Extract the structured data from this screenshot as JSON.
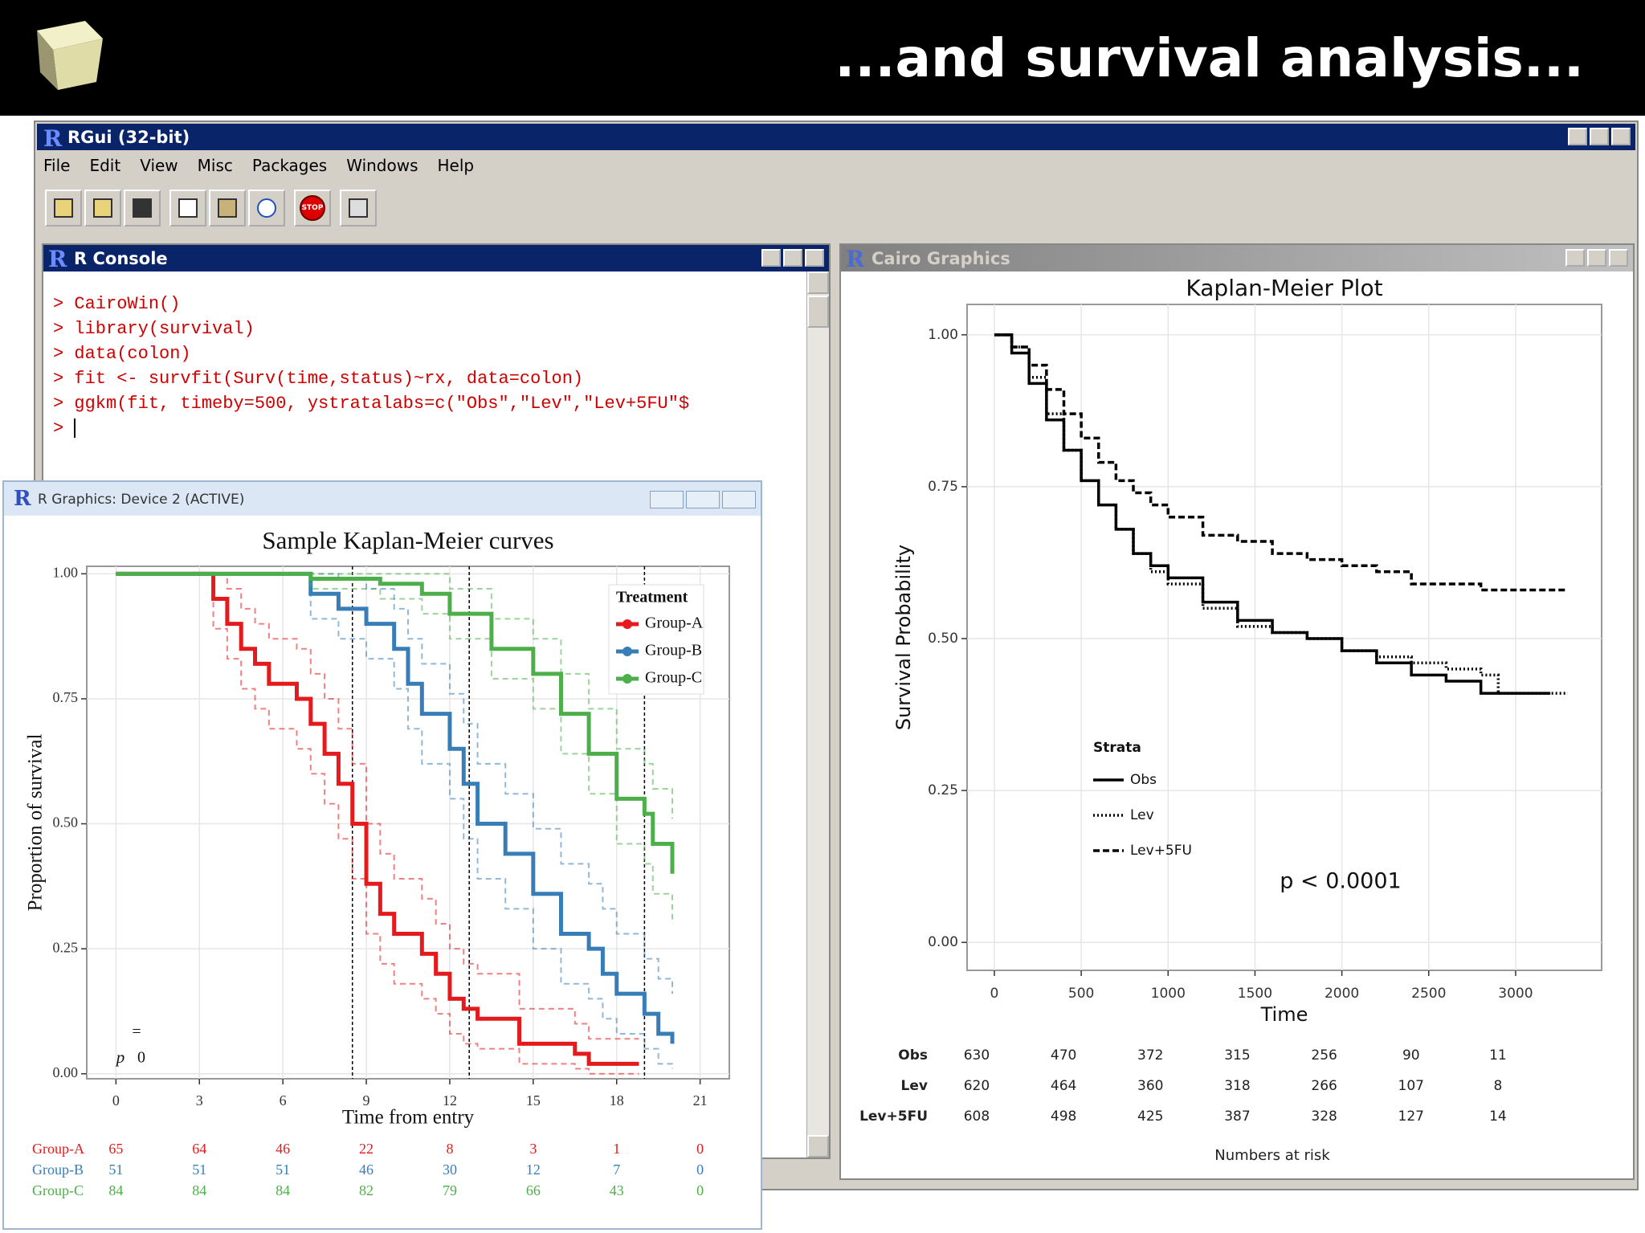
{
  "slide_title": "...and survival analysis...",
  "rgui": {
    "title": "RGui (32-bit)",
    "menu": [
      "File",
      "Edit",
      "View",
      "Misc",
      "Packages",
      "Windows",
      "Help"
    ],
    "stop_label": "STOP"
  },
  "console": {
    "title": "R Console",
    "lines": [
      "> CairoWin()",
      "> library(survival)",
      "> data(colon)",
      "> fit <- survfit(Surv(time,status)~rx, data=colon)",
      "> ggkm(fit, timeby=500, ystratalabs=c(\"Obs\",\"Lev\",\"Lev+5FU\"$",
      "> "
    ]
  },
  "device": {
    "title": "R Graphics: Device 2 (ACTIVE)",
    "chart_data": {
      "type": "step",
      "title": "Sample Kaplan-Meier curves",
      "x_label": "Time from entry",
      "y_label": "Proportion of survival",
      "xlim": [
        -1.05,
        22.05
      ],
      "ylim": [
        -0.01,
        1.015
      ],
      "xticks": [
        0,
        3,
        6,
        9,
        12,
        15,
        18,
        21
      ],
      "yticks": [
        {
          "value": 0,
          "label": "0.00"
        },
        0.25,
        {
          "value": 0.5,
          "label": "0.50"
        },
        0.75,
        {
          "value": 1,
          "label": "1.00"
        }
      ],
      "grid": true,
      "legend": "top-right",
      "legend_title": "Treatment",
      "reference_lines_x": [
        8.5,
        12.7,
        19.0
      ],
      "annotations": [
        "=",
        "p",
        "0"
      ],
      "series": [
        {
          "name": "Group-A",
          "color": "#e41a1c",
          "x": [
            0,
            2.5,
            3.5,
            4,
            4.5,
            5,
            5.5,
            6.5,
            7,
            7.5,
            8,
            8.5,
            9,
            9.5,
            10,
            11,
            11.5,
            12,
            12.5,
            13,
            14.5,
            16.5,
            17,
            18.8
          ],
          "values": [
            1,
            1,
            0.95,
            0.9,
            0.85,
            0.82,
            0.78,
            0.75,
            0.7,
            0.64,
            0.58,
            0.5,
            0.38,
            0.32,
            0.28,
            0.24,
            0.2,
            0.15,
            0.13,
            0.11,
            0.06,
            0.04,
            0.02,
            0.02
          ],
          "lower": [
            1,
            1,
            0.89,
            0.83,
            0.77,
            0.73,
            0.69,
            0.65,
            0.6,
            0.54,
            0.47,
            0.39,
            0.28,
            0.22,
            0.18,
            0.15,
            0.12,
            0.08,
            0.06,
            0.05,
            0.02,
            0.01,
            0,
            0
          ],
          "upper": [
            1,
            1,
            1,
            0.97,
            0.93,
            0.9,
            0.87,
            0.85,
            0.8,
            0.75,
            0.69,
            0.62,
            0.5,
            0.44,
            0.39,
            0.35,
            0.3,
            0.25,
            0.22,
            0.2,
            0.13,
            0.1,
            0.07,
            0.07
          ]
        },
        {
          "name": "Group-B",
          "color": "#377eb8",
          "x": [
            0,
            6.5,
            7,
            8,
            9,
            10,
            10.5,
            11,
            12,
            12.5,
            13,
            14,
            15,
            16,
            17,
            17.5,
            18,
            19,
            19.5,
            20
          ],
          "values": [
            1,
            1,
            0.96,
            0.93,
            0.9,
            0.85,
            0.78,
            0.72,
            0.65,
            0.58,
            0.5,
            0.44,
            0.36,
            0.28,
            0.25,
            0.2,
            0.16,
            0.12,
            0.08,
            0.06
          ],
          "lower": [
            1,
            1,
            0.91,
            0.87,
            0.83,
            0.77,
            0.69,
            0.62,
            0.55,
            0.47,
            0.39,
            0.33,
            0.25,
            0.18,
            0.15,
            0.11,
            0.08,
            0.05,
            0.02,
            0.01
          ],
          "upper": [
            1,
            1,
            1,
            0.99,
            0.97,
            0.93,
            0.87,
            0.82,
            0.76,
            0.7,
            0.62,
            0.56,
            0.49,
            0.42,
            0.38,
            0.33,
            0.28,
            0.23,
            0.19,
            0.16
          ]
        },
        {
          "name": "Group-C",
          "color": "#4daf4a",
          "x": [
            0,
            7,
            9.5,
            11,
            12,
            13.5,
            15,
            16,
            17,
            18,
            19,
            19.3,
            20
          ],
          "values": [
            1,
            0.99,
            0.98,
            0.96,
            0.92,
            0.85,
            0.8,
            0.72,
            0.64,
            0.55,
            0.52,
            0.46,
            0.4
          ],
          "lower": [
            1,
            0.97,
            0.95,
            0.92,
            0.87,
            0.79,
            0.73,
            0.64,
            0.56,
            0.46,
            0.42,
            0.36,
            0.3
          ],
          "upper": [
            1,
            1,
            1,
            1,
            0.97,
            0.91,
            0.87,
            0.8,
            0.73,
            0.65,
            0.62,
            0.57,
            0.51
          ]
        }
      ],
      "risk_table": {
        "counts": [
          [
            65,
            64,
            46,
            22,
            8,
            3,
            1,
            0
          ],
          [
            51,
            51,
            51,
            46,
            30,
            12,
            7,
            0
          ],
          [
            84,
            84,
            84,
            82,
            79,
            66,
            43,
            0
          ]
        ]
      }
    }
  },
  "cairo": {
    "title": "Cairo Graphics",
    "chart_data": {
      "type": "step",
      "title": "Kaplan-Meier Plot",
      "x_label": "Time",
      "y_label": "Survival Probability",
      "xlim": [
        -157,
        3495
      ],
      "ylim": [
        -0.046,
        1.05
      ],
      "xticks": [
        0,
        500,
        1000,
        1500,
        2000,
        2500,
        3000
      ],
      "yticks": [
        {
          "value": 0,
          "label": "0.00"
        },
        0.25,
        {
          "value": 0.5,
          "label": "0.50"
        },
        0.75,
        {
          "value": 1,
          "label": "1.00"
        }
      ],
      "grid": true,
      "legend": "left",
      "legend_title": "Strata",
      "annotations": [
        "p < 0.0001"
      ],
      "series": [
        {
          "name": "Obs",
          "color": "#000000",
          "linestyle": "solid",
          "x": [
            0,
            100,
            200,
            300,
            400,
            500,
            600,
            700,
            800,
            900,
            1000,
            1200,
            1400,
            1600,
            1800,
            2000,
            2200,
            2400,
            2600,
            2800,
            3000,
            3200
          ],
          "values": [
            1,
            0.97,
            0.92,
            0.86,
            0.81,
            0.76,
            0.72,
            0.68,
            0.64,
            0.62,
            0.6,
            0.56,
            0.53,
            0.51,
            0.5,
            0.48,
            0.46,
            0.44,
            0.43,
            0.41,
            0.41,
            0.41
          ]
        },
        {
          "name": "Lev",
          "color": "#000000",
          "linestyle": "dotted",
          "x": [
            0,
            100,
            200,
            300,
            400,
            500,
            600,
            700,
            800,
            900,
            1000,
            1200,
            1400,
            1600,
            1800,
            2000,
            2200,
            2400,
            2600,
            2800,
            2900,
            3300
          ],
          "values": [
            1,
            0.98,
            0.93,
            0.87,
            0.81,
            0.76,
            0.72,
            0.68,
            0.64,
            0.61,
            0.59,
            0.55,
            0.52,
            0.51,
            0.5,
            0.48,
            0.47,
            0.46,
            0.45,
            0.44,
            0.41,
            0.41
          ]
        },
        {
          "name": "Lev+5FU",
          "color": "#000000",
          "linestyle": "dashed",
          "x": [
            0,
            100,
            200,
            300,
            400,
            500,
            600,
            700,
            800,
            900,
            1000,
            1200,
            1400,
            1600,
            1800,
            2000,
            2200,
            2400,
            2600,
            2800,
            3000,
            3300
          ],
          "values": [
            1,
            0.98,
            0.95,
            0.91,
            0.87,
            0.83,
            0.79,
            0.76,
            0.74,
            0.72,
            0.7,
            0.67,
            0.66,
            0.64,
            0.63,
            0.62,
            0.61,
            0.59,
            0.59,
            0.58,
            0.58,
            0.58
          ]
        }
      ],
      "risk_table": {
        "title": "Numbers at risk",
        "counts": [
          [
            630,
            470,
            372,
            315,
            256,
            90,
            11
          ],
          [
            620,
            464,
            360,
            318,
            266,
            107,
            8
          ],
          [
            608,
            498,
            425,
            387,
            328,
            127,
            14
          ]
        ]
      }
    }
  }
}
